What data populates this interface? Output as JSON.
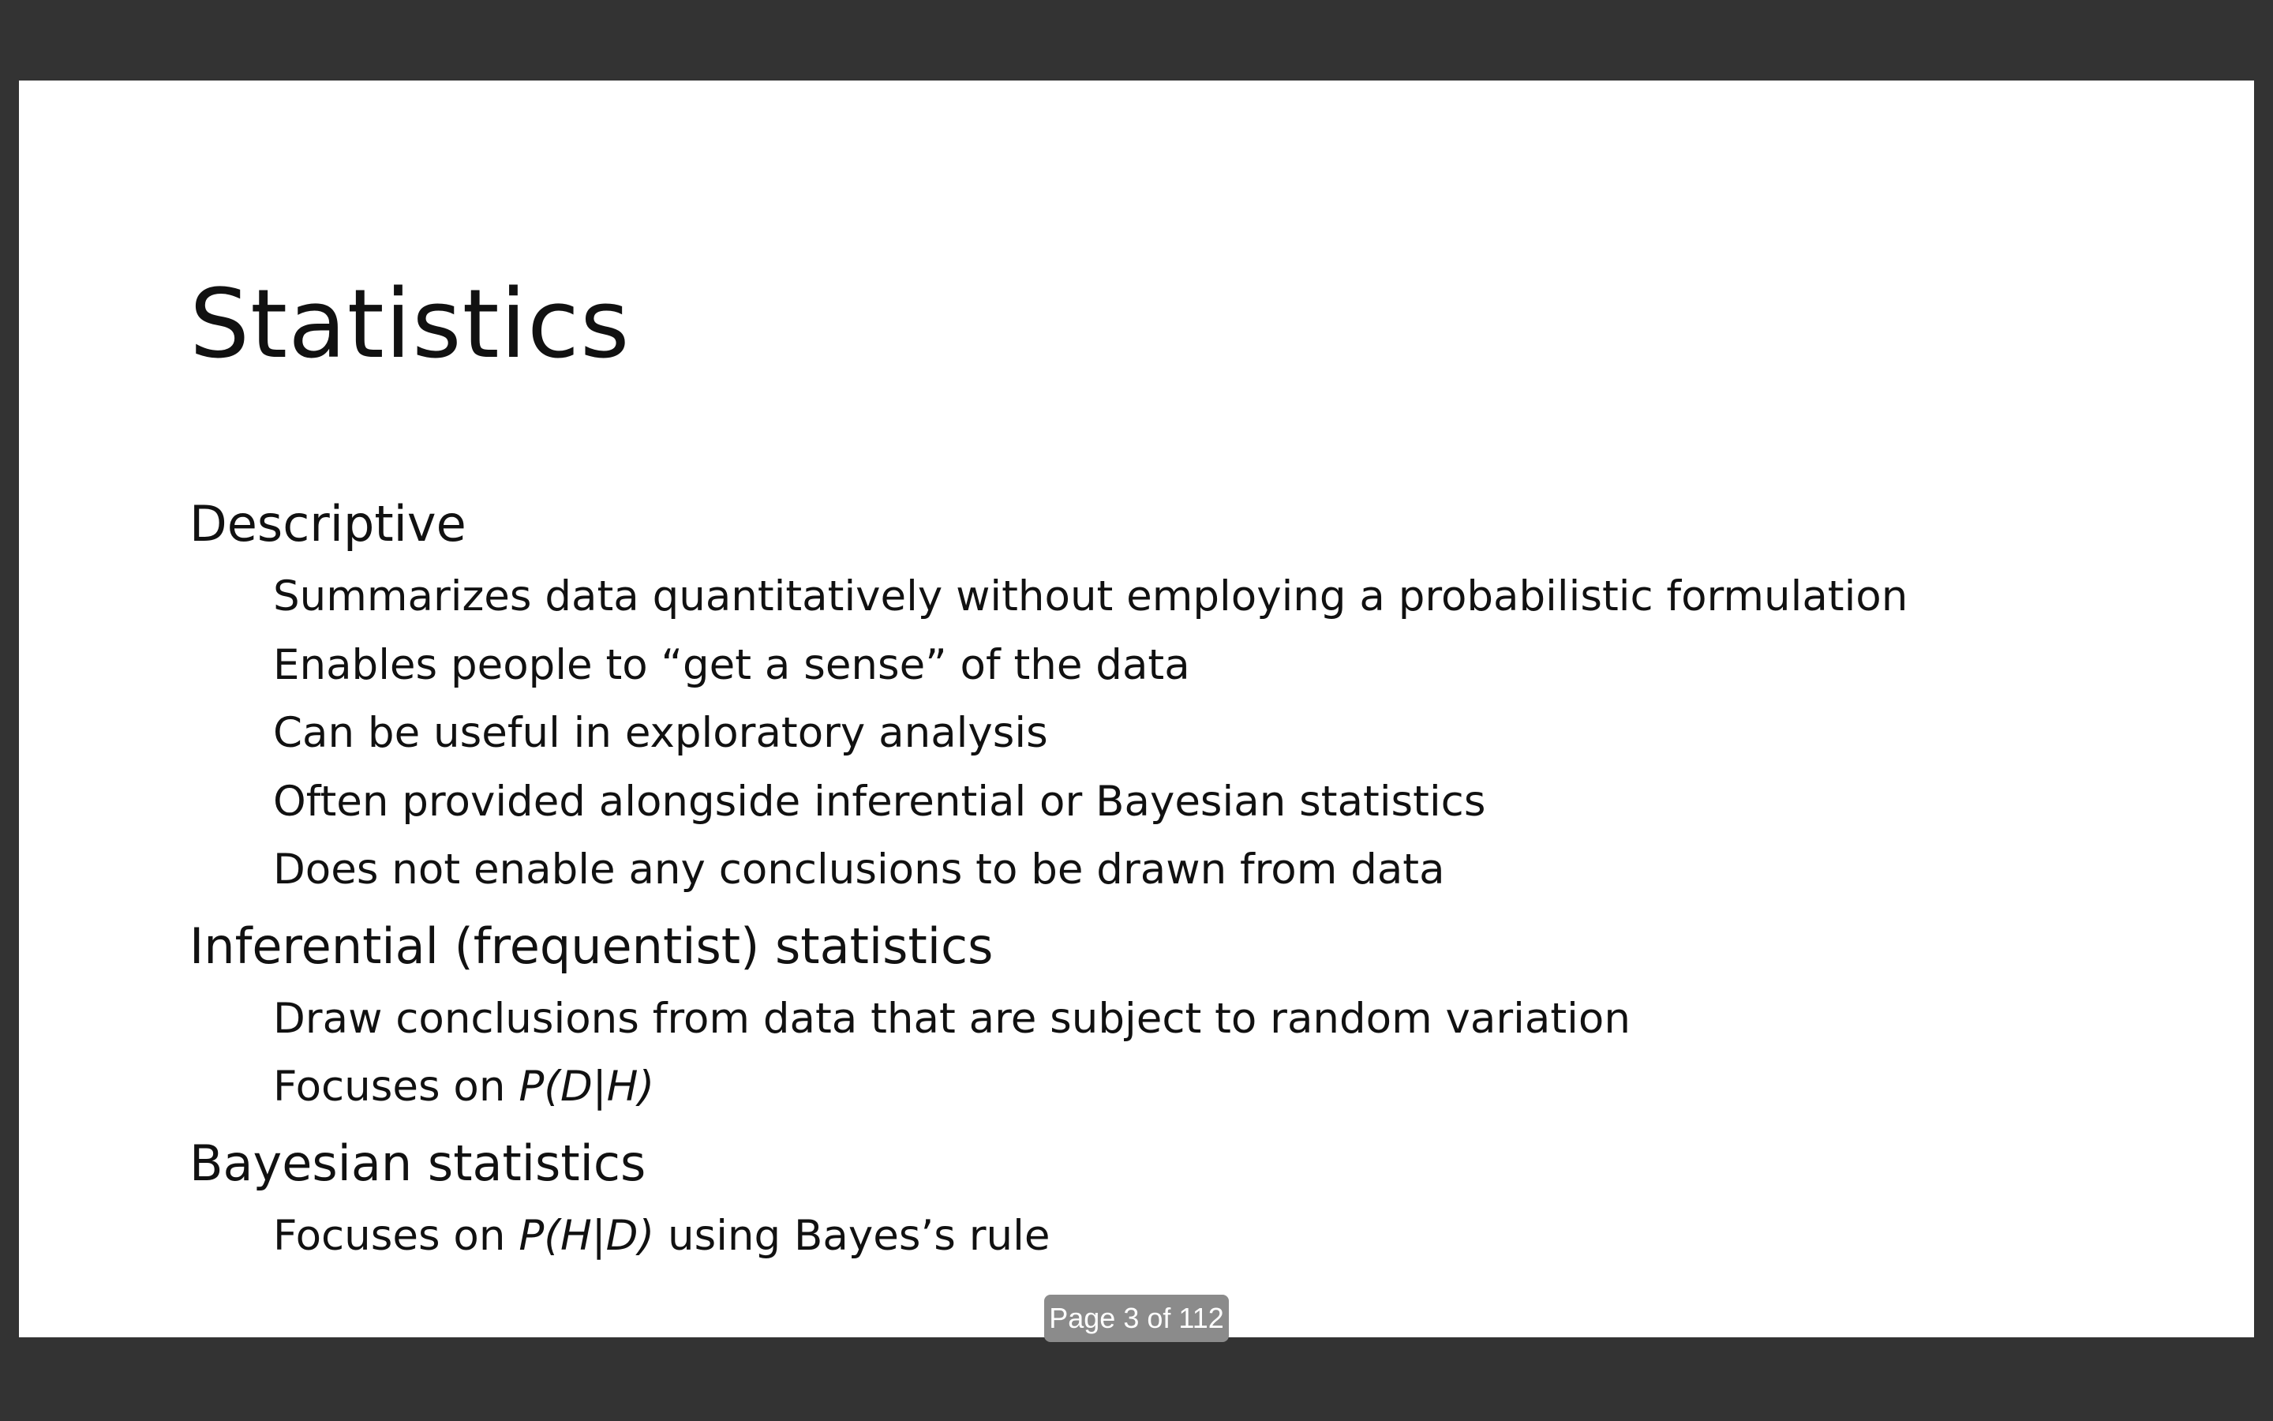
{
  "slide": {
    "title": "Statistics",
    "sections": [
      {
        "heading": "Descriptive",
        "items": [
          "Summarizes data quantitatively without employing a probabilistic formulation",
          "Enables people to “get a sense” of the data",
          "Can be useful in exploratory analysis",
          "Often provided alongside inferential or Bayesian statistics",
          "Does not enable any conclusions to be drawn from data"
        ]
      },
      {
        "heading": "Inferential (frequentist) statistics",
        "items": [
          "Draw conclusions from data that are subject to random variation",
          {
            "prefix": "Focuses on ",
            "math": "P(D|H)",
            "suffix": ""
          }
        ]
      },
      {
        "heading": "Bayesian statistics",
        "items": [
          {
            "prefix": "Focuses on ",
            "math": "P(H|D)",
            "suffix": " using Bayes’s rule"
          }
        ]
      }
    ]
  },
  "viewer": {
    "page_indicator": "Page 3 of 112"
  },
  "colors": {
    "viewer_background": "#333333",
    "slide_background": "#ffffff",
    "text": "#111111",
    "page_indicator_background": "#8b8b8b",
    "page_indicator_text": "#ffffff"
  }
}
